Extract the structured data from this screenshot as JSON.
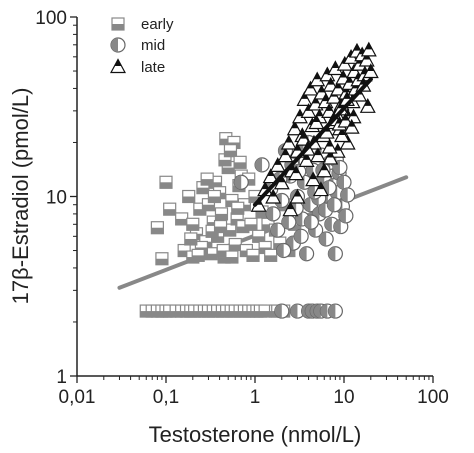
{
  "chart_data": {
    "type": "scatter",
    "title": "",
    "xlabel": "Testosterone (nmol/L)",
    "ylabel": "17β-Estradiol (pmol/L)",
    "xscale": "log",
    "yscale": "log",
    "xlim": [
      0.01,
      100
    ],
    "ylim": [
      1,
      100
    ],
    "x_ticks": [
      0.01,
      0.1,
      1,
      10,
      100
    ],
    "x_tick_labels": [
      "0,01",
      "0,1",
      "1",
      "10",
      "100"
    ],
    "y_ticks": [
      1,
      10,
      100
    ],
    "y_tick_labels": [
      "1",
      "10",
      "100"
    ],
    "grid": false,
    "legend": "top-left",
    "series": [
      {
        "name": "early",
        "marker": "square-half",
        "color": "#888888",
        "points": [
          [
            0.06,
            2.3
          ],
          [
            0.07,
            2.3
          ],
          [
            0.08,
            2.3
          ],
          [
            0.09,
            2.3
          ],
          [
            0.1,
            2.3
          ],
          [
            0.11,
            2.3
          ],
          [
            0.13,
            2.3
          ],
          [
            0.15,
            2.3
          ],
          [
            0.17,
            2.3
          ],
          [
            0.19,
            2.3
          ],
          [
            0.21,
            2.3
          ],
          [
            0.24,
            2.3
          ],
          [
            0.27,
            2.3
          ],
          [
            0.3,
            2.3
          ],
          [
            0.34,
            2.3
          ],
          [
            0.38,
            2.3
          ],
          [
            0.43,
            2.3
          ],
          [
            0.48,
            2.3
          ],
          [
            0.54,
            2.3
          ],
          [
            0.6,
            2.3
          ],
          [
            0.68,
            2.3
          ],
          [
            0.76,
            2.3
          ],
          [
            0.85,
            2.3
          ],
          [
            0.95,
            2.3
          ],
          [
            1.05,
            2.3
          ],
          [
            1.15,
            2.3
          ],
          [
            1.3,
            2.3
          ],
          [
            1.7,
            2.3
          ],
          [
            1.8,
            2.3
          ],
          [
            2.1,
            2.3
          ],
          [
            0.08,
            6.7
          ],
          [
            0.09,
            4.5
          ],
          [
            0.1,
            12.0
          ],
          [
            0.11,
            8.5
          ],
          [
            0.15,
            7.5
          ],
          [
            0.16,
            5.0
          ],
          [
            0.18,
            10.0
          ],
          [
            0.2,
            4.6
          ],
          [
            0.22,
            6.2
          ],
          [
            0.24,
            8.5
          ],
          [
            0.26,
            11.2
          ],
          [
            0.28,
            5.6
          ],
          [
            0.3,
            9.0
          ],
          [
            0.32,
            4.8
          ],
          [
            0.34,
            7.2
          ],
          [
            0.36,
            12.0
          ],
          [
            0.38,
            6.0
          ],
          [
            0.4,
            10.5
          ],
          [
            0.42,
            8.0
          ],
          [
            0.45,
            4.6
          ],
          [
            0.47,
            21.0
          ],
          [
            0.5,
            14.5
          ],
          [
            0.52,
            6.5
          ],
          [
            0.55,
            9.5
          ],
          [
            0.58,
            20.0
          ],
          [
            0.6,
            5.4
          ],
          [
            0.63,
            7.5
          ],
          [
            0.66,
            11.5
          ],
          [
            0.7,
            13.0
          ],
          [
            0.73,
            6.8
          ],
          [
            0.76,
            9.0
          ],
          [
            0.8,
            5.0
          ],
          [
            0.85,
            12.5
          ],
          [
            0.9,
            7.0
          ],
          [
            0.95,
            4.7
          ],
          [
            1.0,
            10.0
          ],
          [
            1.1,
            6.0
          ],
          [
            1.2,
            8.2
          ],
          [
            1.3,
            5.2
          ],
          [
            1.4,
            7.0
          ],
          [
            1.5,
            4.7
          ],
          [
            1.7,
            6.5
          ],
          [
            1.9,
            5.5
          ],
          [
            2.1,
            9.0
          ],
          [
            2.4,
            5.0
          ],
          [
            2.8,
            7.0
          ],
          [
            0.2,
            7.0
          ],
          [
            0.25,
            5.2
          ],
          [
            0.33,
            6.4
          ],
          [
            0.44,
            5.0
          ],
          [
            0.55,
            4.6
          ],
          [
            0.64,
            8.6
          ],
          [
            0.35,
            10.0
          ],
          [
            0.29,
            12.5
          ],
          [
            0.46,
            16.0
          ],
          [
            0.53,
            18.0
          ],
          [
            0.68,
            15.5
          ],
          [
            0.19,
            5.8
          ],
          [
            0.23,
            4.7
          ],
          [
            0.41,
            6.8
          ]
        ]
      },
      {
        "name": "mid",
        "marker": "circle-half",
        "color": "#888888",
        "points": [
          [
            2.0,
            2.3
          ],
          [
            3.0,
            2.3
          ],
          [
            4.0,
            2.3
          ],
          [
            4.4,
            2.3
          ],
          [
            5.0,
            2.3
          ],
          [
            5.5,
            2.3
          ],
          [
            6.5,
            2.3
          ],
          [
            8.0,
            2.3
          ],
          [
            0.7,
            12.0
          ],
          [
            1.2,
            15.0
          ],
          [
            1.5,
            11.0
          ],
          [
            1.8,
            6.5
          ],
          [
            2.0,
            9.5
          ],
          [
            2.2,
            18.0
          ],
          [
            2.5,
            13.0
          ],
          [
            2.7,
            5.5
          ],
          [
            3.0,
            10.0
          ],
          [
            3.2,
            16.0
          ],
          [
            3.4,
            7.5
          ],
          [
            3.6,
            12.0
          ],
          [
            3.8,
            4.8
          ],
          [
            4.0,
            20.0
          ],
          [
            4.2,
            9.0
          ],
          [
            4.5,
            14.0
          ],
          [
            4.8,
            6.5
          ],
          [
            5.0,
            11.0
          ],
          [
            5.3,
            8.0
          ],
          [
            5.6,
            17.0
          ],
          [
            6.0,
            12.5
          ],
          [
            6.3,
            5.8
          ],
          [
            6.6,
            9.5
          ],
          [
            7.0,
            15.5
          ],
          [
            7.3,
            7.0
          ],
          [
            7.6,
            11.5
          ],
          [
            8.0,
            4.8
          ],
          [
            8.4,
            10.5
          ],
          [
            8.8,
            13.5
          ],
          [
            9.2,
            6.8
          ],
          [
            9.6,
            8.8
          ],
          [
            10.0,
            12.0
          ],
          [
            10.5,
            7.8
          ],
          [
            11.0,
            10.2
          ],
          [
            2.4,
            7.2
          ],
          [
            2.9,
            8.6
          ],
          [
            3.3,
            6.0
          ],
          [
            4.3,
            7.2
          ],
          [
            5.2,
            9.8
          ],
          [
            6.2,
            8.4
          ],
          [
            7.8,
            9.0
          ],
          [
            1.9,
            12.5
          ],
          [
            2.6,
            15.0
          ],
          [
            3.5,
            18.5
          ],
          [
            4.7,
            10.6
          ],
          [
            5.8,
            14.0
          ],
          [
            6.8,
            11.2
          ],
          [
            8.2,
            16.0
          ],
          [
            9.0,
            14.5
          ],
          [
            1.6,
            8.0
          ],
          [
            2.1,
            5.0
          ],
          [
            3.1,
            13.8
          ]
        ]
      },
      {
        "name": "late",
        "marker": "triangle-half",
        "color": "#111111",
        "points": [
          [
            1.1,
            9.0
          ],
          [
            1.3,
            11.0
          ],
          [
            1.5,
            13.0
          ],
          [
            1.8,
            15.0
          ],
          [
            2.0,
            12.0
          ],
          [
            2.2,
            17.0
          ],
          [
            2.4,
            20.0
          ],
          [
            2.6,
            14.0
          ],
          [
            2.8,
            24.0
          ],
          [
            3.0,
            18.0
          ],
          [
            3.2,
            28.0
          ],
          [
            3.4,
            22.0
          ],
          [
            3.6,
            35.0
          ],
          [
            3.8,
            16.0
          ],
          [
            4.0,
            30.0
          ],
          [
            4.2,
            40.0
          ],
          [
            4.4,
            25.0
          ],
          [
            4.6,
            20.0
          ],
          [
            4.8,
            33.0
          ],
          [
            5.0,
            45.0
          ],
          [
            5.3,
            28.0
          ],
          [
            5.6,
            38.0
          ],
          [
            5.9,
            22.0
          ],
          [
            6.2,
            34.0
          ],
          [
            6.5,
            48.0
          ],
          [
            6.8,
            30.0
          ],
          [
            7.1,
            42.0
          ],
          [
            7.4,
            26.0
          ],
          [
            7.7,
            36.0
          ],
          [
            8.0,
            52.0
          ],
          [
            8.3,
            29.0
          ],
          [
            8.6,
            40.0
          ],
          [
            9.0,
            24.0
          ],
          [
            9.4,
            33.0
          ],
          [
            9.8,
            46.0
          ],
          [
            10.2,
            55.0
          ],
          [
            10.6,
            38.0
          ],
          [
            11.0,
            28.0
          ],
          [
            11.5,
            43.0
          ],
          [
            12.0,
            60.0
          ],
          [
            12.5,
            34.0
          ],
          [
            13.0,
            50.0
          ],
          [
            13.5,
            40.0
          ],
          [
            14.0,
            65.0
          ],
          [
            14.5,
            45.0
          ],
          [
            15.0,
            55.0
          ],
          [
            16.0,
            62.0
          ],
          [
            17.0,
            48.0
          ],
          [
            18.0,
            58.0
          ],
          [
            19.0,
            66.0
          ],
          [
            20.0,
            50.0
          ],
          [
            3.0,
            10.0
          ],
          [
            2.5,
            8.5
          ],
          [
            6.0,
            14.0
          ],
          [
            8.5,
            18.0
          ],
          [
            4.5,
            12.5
          ],
          [
            11.0,
            20.0
          ],
          [
            7.0,
            16.5
          ],
          [
            9.5,
            22.0
          ],
          [
            5.5,
            11.0
          ],
          [
            1.6,
            10.0
          ],
          [
            2.9,
            13.5
          ],
          [
            3.5,
            21.0
          ],
          [
            4.9,
            26.0
          ],
          [
            6.4,
            23.0
          ],
          [
            7.8,
            27.0
          ],
          [
            9.2,
            31.0
          ],
          [
            10.8,
            35.0
          ],
          [
            12.8,
            28.0
          ],
          [
            14.8,
            37.0
          ],
          [
            16.5,
            42.0
          ],
          [
            18.5,
            32.0
          ],
          [
            3.9,
            18.5
          ],
          [
            5.1,
            17.0
          ],
          [
            6.9,
            19.0
          ],
          [
            8.9,
            25.5
          ],
          [
            10.4,
            26.5
          ],
          [
            12.2,
            24.5
          ]
        ]
      }
    ],
    "fit_lines": [
      {
        "color": "#888888",
        "x": [
          0.03,
          50
        ],
        "y": [
          3.1,
          12.8
        ]
      },
      {
        "color": "#111111",
        "x": [
          1.0,
          20
        ],
        "y": [
          9.0,
          45.0
        ]
      }
    ]
  }
}
